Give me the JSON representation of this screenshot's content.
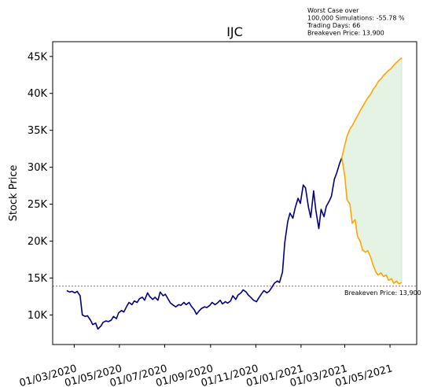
{
  "chart_data": {
    "type": "line",
    "title": "IJC",
    "xlabel": "",
    "ylabel": "Stock Price",
    "ylim": [
      6000,
      47000
    ],
    "y_ticks": [
      {
        "value": 10000,
        "label": "10K"
      },
      {
        "value": 15000,
        "label": "15K"
      },
      {
        "value": 20000,
        "label": "20K"
      },
      {
        "value": 25000,
        "label": "25K"
      },
      {
        "value": 30000,
        "label": "30K"
      },
      {
        "value": 35000,
        "label": "35K"
      },
      {
        "value": 40000,
        "label": "40K"
      },
      {
        "value": 45000,
        "label": "45K"
      }
    ],
    "xlim": [
      "2020-02-01",
      "2021-06-06"
    ],
    "x_ticks": [
      {
        "value": "2020-03-01",
        "label": "01/03/2020"
      },
      {
        "value": "2020-05-01",
        "label": "01/05/2020"
      },
      {
        "value": "2020-07-01",
        "label": "01/07/2020"
      },
      {
        "value": "2020-09-01",
        "label": "01/09/2020"
      },
      {
        "value": "2020-11-01",
        "label": "01/11/2020"
      },
      {
        "value": "2021-01-01",
        "label": "01/01/2021"
      },
      {
        "value": "2021-03-01",
        "label": "01/03/2021"
      },
      {
        "value": "2021-05-01",
        "label": "01/05/2021"
      }
    ],
    "annotation": [
      "Worst Case over",
      "100,000 Simulations: -55.78 %",
      "Trading Days: 66",
      "Breakeven Price: 13,900"
    ],
    "breakeven": {
      "value": 13900,
      "label": "Breakeven Price: 13,900",
      "color": "#d62728"
    },
    "series": [
      {
        "color": "#00007f",
        "points": [
          [
            "2020-02-20",
            13300
          ],
          [
            "2020-02-24",
            13100
          ],
          [
            "2020-02-27",
            13200
          ],
          [
            "2020-03-02",
            13000
          ],
          [
            "2020-03-05",
            13200
          ],
          [
            "2020-03-09",
            12600
          ],
          [
            "2020-03-12",
            10000
          ],
          [
            "2020-03-16",
            9800
          ],
          [
            "2020-03-19",
            9900
          ],
          [
            "2020-03-23",
            9300
          ],
          [
            "2020-03-26",
            8700
          ],
          [
            "2020-03-30",
            8900
          ],
          [
            "2020-04-02",
            8100
          ],
          [
            "2020-04-06",
            8500
          ],
          [
            "2020-04-09",
            9000
          ],
          [
            "2020-04-13",
            9200
          ],
          [
            "2020-04-16",
            9100
          ],
          [
            "2020-04-20",
            9300
          ],
          [
            "2020-04-23",
            9800
          ],
          [
            "2020-04-27",
            9500
          ],
          [
            "2020-04-30",
            10300
          ],
          [
            "2020-05-04",
            10600
          ],
          [
            "2020-05-07",
            10400
          ],
          [
            "2020-05-11",
            11200
          ],
          [
            "2020-05-14",
            11700
          ],
          [
            "2020-05-18",
            11400
          ],
          [
            "2020-05-21",
            11900
          ],
          [
            "2020-05-25",
            11700
          ],
          [
            "2020-05-28",
            12200
          ],
          [
            "2020-06-01",
            12400
          ],
          [
            "2020-06-04",
            12000
          ],
          [
            "2020-06-08",
            13000
          ],
          [
            "2020-06-11",
            12500
          ],
          [
            "2020-06-15",
            12100
          ],
          [
            "2020-06-18",
            12400
          ],
          [
            "2020-06-22",
            12000
          ],
          [
            "2020-06-25",
            13100
          ],
          [
            "2020-06-29",
            12600
          ],
          [
            "2020-07-02",
            12800
          ],
          [
            "2020-07-06",
            12100
          ],
          [
            "2020-07-09",
            11600
          ],
          [
            "2020-07-13",
            11300
          ],
          [
            "2020-07-16",
            11100
          ],
          [
            "2020-07-20",
            11400
          ],
          [
            "2020-07-23",
            11300
          ],
          [
            "2020-07-27",
            11700
          ],
          [
            "2020-07-30",
            11400
          ],
          [
            "2020-08-03",
            11700
          ],
          [
            "2020-08-06",
            11200
          ],
          [
            "2020-08-10",
            10700
          ],
          [
            "2020-08-13",
            10100
          ],
          [
            "2020-08-17",
            10600
          ],
          [
            "2020-08-20",
            10900
          ],
          [
            "2020-08-24",
            11100
          ],
          [
            "2020-08-27",
            11000
          ],
          [
            "2020-08-31",
            11300
          ],
          [
            "2020-09-03",
            11700
          ],
          [
            "2020-09-07",
            11400
          ],
          [
            "2020-09-10",
            11600
          ],
          [
            "2020-09-14",
            12000
          ],
          [
            "2020-09-17",
            11500
          ],
          [
            "2020-09-21",
            11800
          ],
          [
            "2020-09-24",
            11600
          ],
          [
            "2020-09-28",
            11900
          ],
          [
            "2020-10-01",
            12600
          ],
          [
            "2020-10-05",
            12100
          ],
          [
            "2020-10-08",
            12700
          ],
          [
            "2020-10-12",
            13000
          ],
          [
            "2020-10-15",
            13400
          ],
          [
            "2020-10-19",
            13100
          ],
          [
            "2020-10-22",
            12700
          ],
          [
            "2020-10-26",
            12300
          ],
          [
            "2020-10-29",
            12000
          ],
          [
            "2020-11-02",
            11800
          ],
          [
            "2020-11-05",
            12300
          ],
          [
            "2020-11-09",
            12900
          ],
          [
            "2020-11-12",
            13300
          ],
          [
            "2020-11-16",
            13000
          ],
          [
            "2020-11-19",
            13200
          ],
          [
            "2020-11-23",
            13800
          ],
          [
            "2020-11-26",
            14300
          ],
          [
            "2020-11-30",
            14600
          ],
          [
            "2020-12-03",
            14400
          ],
          [
            "2020-12-07",
            15800
          ],
          [
            "2020-12-10",
            19800
          ],
          [
            "2020-12-14",
            22600
          ],
          [
            "2020-12-17",
            23800
          ],
          [
            "2020-12-21",
            23100
          ],
          [
            "2020-12-24",
            24500
          ],
          [
            "2020-12-28",
            25800
          ],
          [
            "2020-12-31",
            25100
          ],
          [
            "2021-01-04",
            27600
          ],
          [
            "2021-01-07",
            27200
          ],
          [
            "2021-01-11",
            24600
          ],
          [
            "2021-01-14",
            23200
          ],
          [
            "2021-01-18",
            26800
          ],
          [
            "2021-01-21",
            24100
          ],
          [
            "2021-01-25",
            21700
          ],
          [
            "2021-01-28",
            24300
          ],
          [
            "2021-02-01",
            23300
          ],
          [
            "2021-02-04",
            24700
          ],
          [
            "2021-02-08",
            25400
          ],
          [
            "2021-02-11",
            26100
          ],
          [
            "2021-02-15",
            28400
          ],
          [
            "2021-02-18",
            29200
          ],
          [
            "2021-02-22",
            30500
          ],
          [
            "2021-02-25",
            31300
          ]
        ]
      },
      {
        "color": "#ffa500",
        "points": [
          [
            "2021-02-25",
            31300
          ],
          [
            "2021-03-01",
            33000
          ],
          [
            "2021-03-04",
            34200
          ],
          [
            "2021-03-08",
            35200
          ],
          [
            "2021-03-11",
            35600
          ],
          [
            "2021-03-15",
            36400
          ],
          [
            "2021-03-18",
            36900
          ],
          [
            "2021-03-22",
            37700
          ],
          [
            "2021-03-25",
            38200
          ],
          [
            "2021-03-29",
            38900
          ],
          [
            "2021-04-01",
            39400
          ],
          [
            "2021-04-05",
            39900
          ],
          [
            "2021-04-08",
            40500
          ],
          [
            "2021-04-12",
            41000
          ],
          [
            "2021-04-15",
            41600
          ],
          [
            "2021-04-19",
            42000
          ],
          [
            "2021-04-22",
            42400
          ],
          [
            "2021-04-26",
            42800
          ],
          [
            "2021-04-29",
            43100
          ],
          [
            "2021-05-03",
            43400
          ],
          [
            "2021-05-06",
            43800
          ],
          [
            "2021-05-10",
            44200
          ],
          [
            "2021-05-13",
            44500
          ],
          [
            "2021-05-17",
            44800
          ]
        ]
      },
      {
        "color": "#ffa500",
        "points": [
          [
            "2021-02-25",
            31300
          ],
          [
            "2021-03-01",
            28800
          ],
          [
            "2021-03-04",
            25600
          ],
          [
            "2021-03-08",
            25000
          ],
          [
            "2021-03-11",
            22400
          ],
          [
            "2021-03-15",
            22900
          ],
          [
            "2021-03-18",
            20700
          ],
          [
            "2021-03-22",
            19900
          ],
          [
            "2021-03-25",
            18800
          ],
          [
            "2021-03-29",
            18500
          ],
          [
            "2021-04-01",
            18700
          ],
          [
            "2021-04-05",
            17800
          ],
          [
            "2021-04-08",
            16800
          ],
          [
            "2021-04-12",
            15800
          ],
          [
            "2021-04-15",
            15400
          ],
          [
            "2021-04-19",
            15700
          ],
          [
            "2021-04-22",
            15200
          ],
          [
            "2021-04-26",
            15400
          ],
          [
            "2021-04-29",
            14700
          ],
          [
            "2021-05-03",
            14900
          ],
          [
            "2021-05-06",
            14300
          ],
          [
            "2021-05-10",
            14600
          ],
          [
            "2021-05-13",
            14200
          ],
          [
            "2021-05-17",
            14400
          ]
        ]
      }
    ],
    "fill_color": "#2ca02c"
  }
}
